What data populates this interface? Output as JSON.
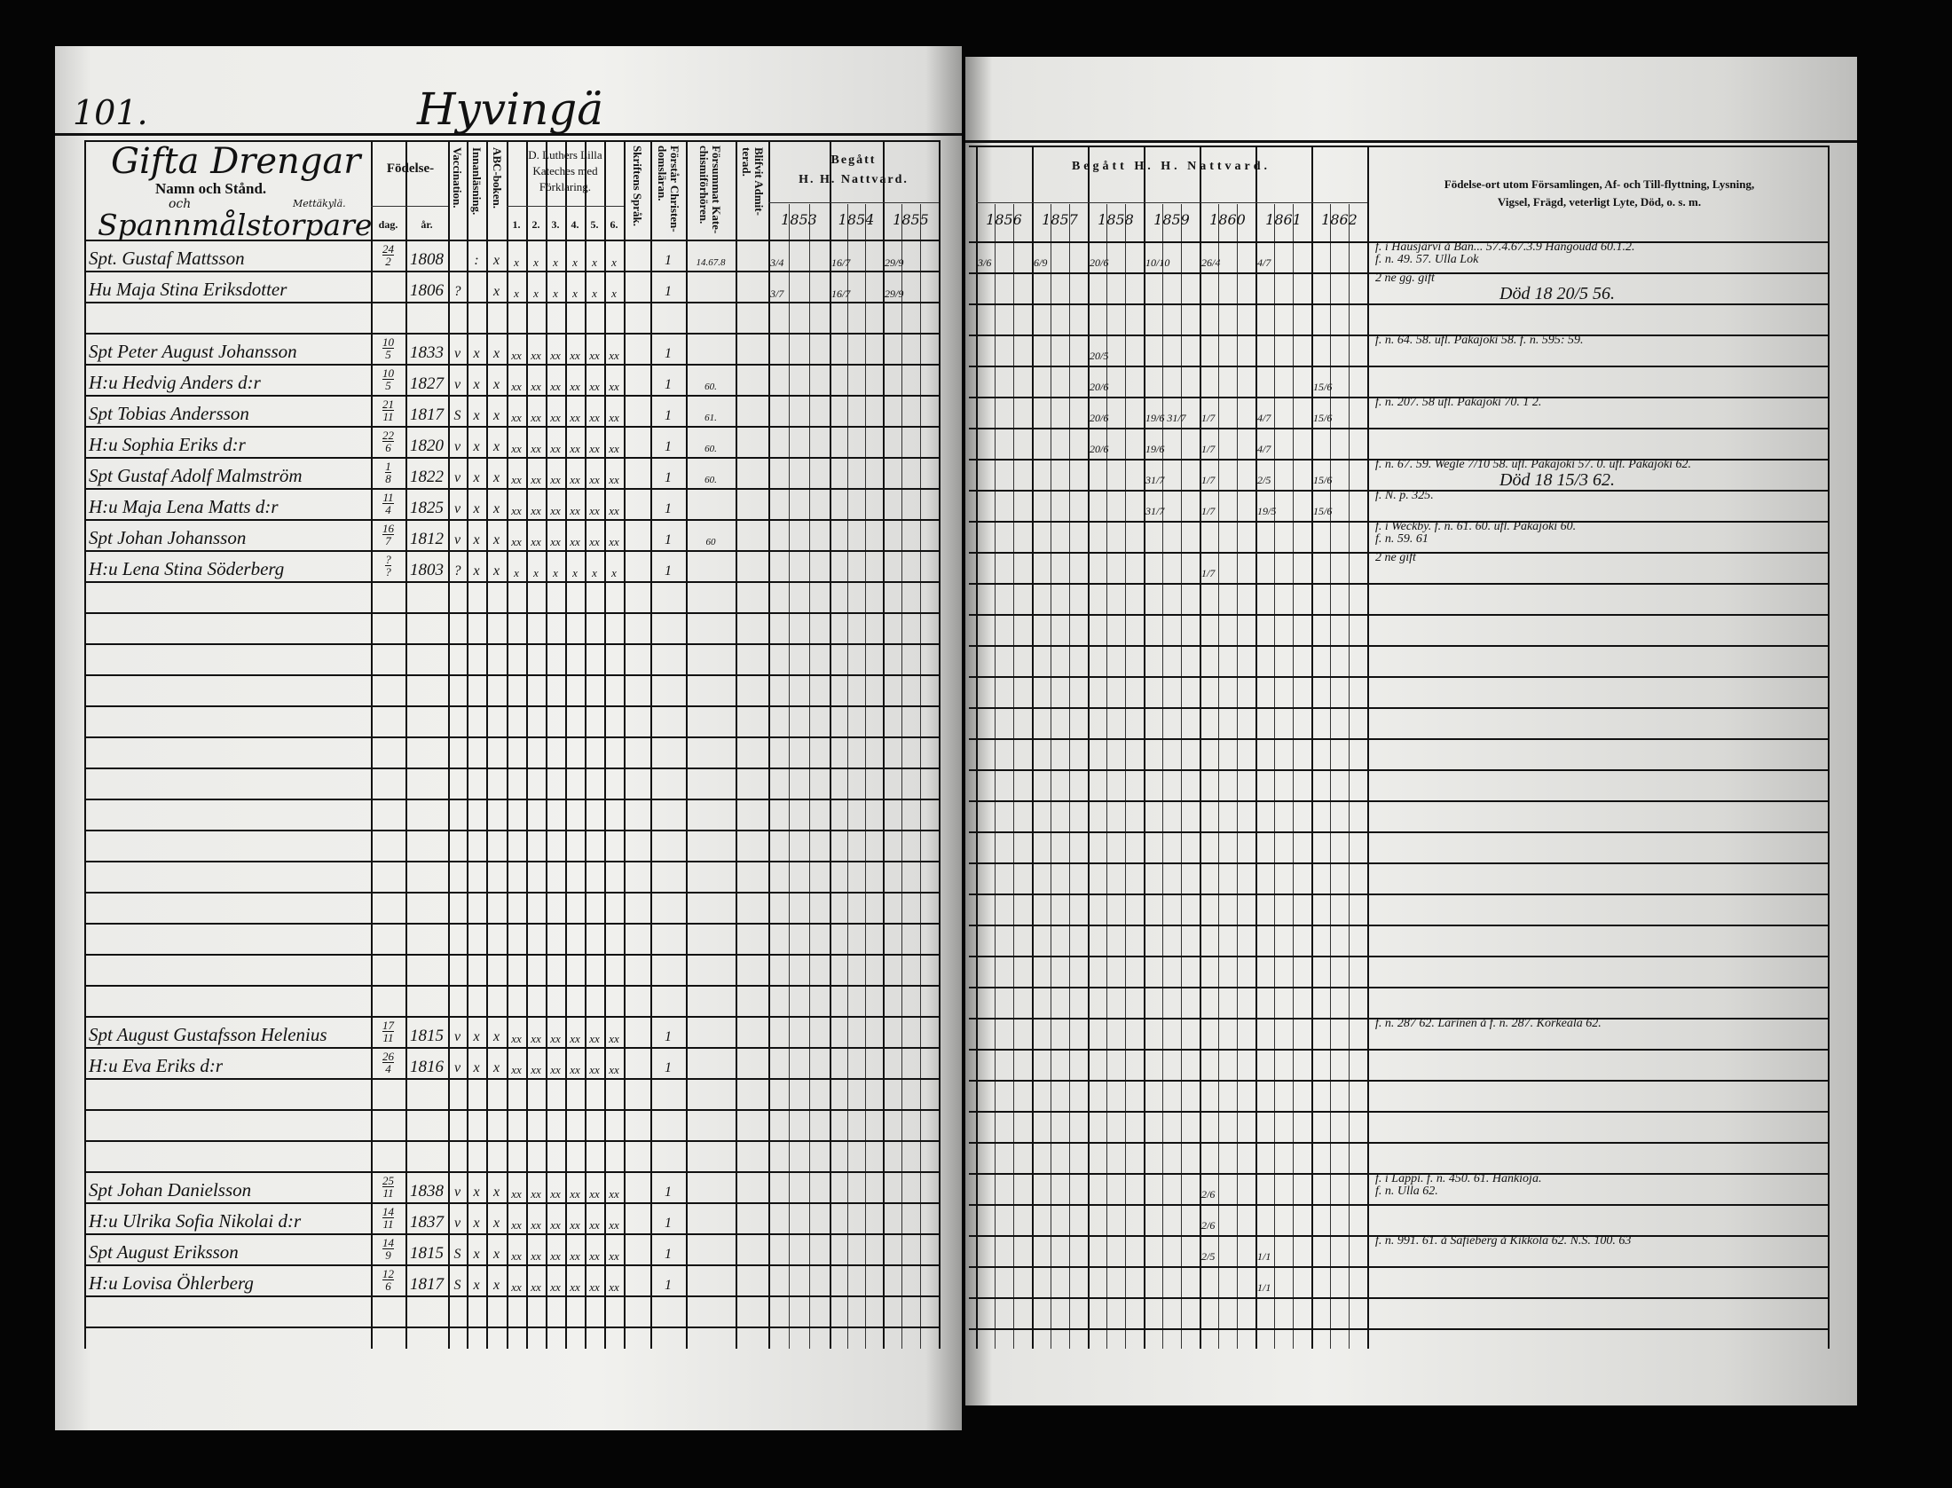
{
  "header": {
    "page_number": "101.",
    "village": "Hyvingä",
    "section_title": "Gifta Drengar",
    "name_label": "Namn och Stånd.",
    "och": "och",
    "village_note": "Mettäkylä.",
    "section_subtitle": "Spannmålstorpare"
  },
  "columns": {
    "fodelse": "Födelse-",
    "dag": "dag.",
    "ar": "år.",
    "vaccination": "Vaccination.",
    "innanlasning": "Innanläsning.",
    "abc": "ABC-boken.",
    "katekes_1": "D. Luthers Lilla",
    "katekes_2": "Kateches med",
    "katekes_3": "Förklaring.",
    "katekes_parts": [
      "1.",
      "2.",
      "3.",
      "4.",
      "5.",
      "6."
    ],
    "skriftens": "Skriftens Språk.",
    "forstar_1": "Förstår Christen-",
    "forstar_2": "domsläran.",
    "forsummat_1": "Försummat Kate-",
    "forsummat_2": "chismiförhören.",
    "blifvit_1": "Blifvit Admit-",
    "blifvit_2": "terad.",
    "begatt_left_1": "Begått",
    "begatt_left_2": "H. H. Nattvard.",
    "begatt_right": "Begått H. H. Nattvard.",
    "years": [
      "1853",
      "1854",
      "1855",
      "1856",
      "1857",
      "1858",
      "1859",
      "1860",
      "1861",
      "1862"
    ],
    "remarks_1": "Födelse-ort utom Församlingen, Af- och Till-flyttning, Lysning,",
    "remarks_2": "Vigsel, Frägd, veterligt Lyte, Död, o. s. m."
  },
  "rows": [
    {
      "name": "Spt. Gustaf Mattsson",
      "day": "24",
      "month": "2",
      "year": "1808",
      "vacc": "",
      "innan": ":",
      "abc": "x",
      "kat": [
        "x",
        "x",
        "x",
        "x",
        "x",
        "x"
      ],
      "forstar": "1",
      "forsummat": "14.67.8",
      "communion": {
        "1853": "3/4",
        "1854": "16/7",
        "1855": "29/9",
        "1856": "3/6",
        "1857": "6/9",
        "1858": "20/6",
        "1859": "10/10",
        "1860": "26/4",
        "1861": "4/7"
      },
      "remarks": [
        "f. i Hausjärvi å Ban... 57.4.67.3.9 Hangoudd 60.1.2.",
        "f. n. 49. 57. Ulla Lok"
      ]
    },
    {
      "name": "Hu Maja Stina Eriksdotter",
      "day": "",
      "month": "",
      "year": "1806",
      "vacc": "?",
      "innan": "",
      "abc": "x",
      "kat": [
        "x",
        "x",
        "x",
        "x",
        "x",
        "x"
      ],
      "forstar": "1",
      "forsummat": "",
      "communion": {
        "1853": "3/7",
        "1854": "16/7",
        "1855": "29/9"
      },
      "remarks": [
        "2 ne gg. gift",
        "Död 18 20/5 56."
      ]
    },
    null,
    {
      "name": "Spt Peter August Johansson",
      "day": "10",
      "month": "5",
      "year": "1833",
      "vacc": "v",
      "innan": "x",
      "abc": "x",
      "kat": [
        "xx",
        "xx",
        "xx",
        "xx",
        "xx",
        "xx"
      ],
      "forstar": "1",
      "forsummat": "",
      "communion": {
        "1858": "20/5"
      },
      "remarks": [
        "f. n. 64. 58. ufl. Pakajoki 58. f. n. 595: 59."
      ]
    },
    {
      "name": "H:u Hedvig Anders d:r",
      "day": "10",
      "month": "5",
      "year": "1827",
      "vacc": "v",
      "innan": "x",
      "abc": "x",
      "kat": [
        "xx",
        "xx",
        "xx",
        "xx",
        "xx",
        "xx"
      ],
      "forstar": "1",
      "forsummat": "60.",
      "communion": {
        "1858": "20/6",
        "1862": "15/6"
      },
      "remarks": []
    },
    {
      "name": "Spt Tobias Andersson",
      "day": "21",
      "month": "11",
      "year": "1817",
      "vacc": "S",
      "innan": "x",
      "abc": "x",
      "kat": [
        "xx",
        "xx",
        "xx",
        "xx",
        "xx",
        "xx"
      ],
      "forstar": "1",
      "forsummat": "61.",
      "communion": {
        "1858": "20/6",
        "1859": "19/6 31/7",
        "1860": "1/7",
        "1861": "4/7",
        "1862": "15/6"
      },
      "remarks": [
        "f. n. 207. 58 ufl. Pakajoki 70. 1 2."
      ]
    },
    {
      "name": "H:u Sophia Eriks d:r",
      "day": "22",
      "month": "6",
      "year": "1820",
      "vacc": "v",
      "innan": "x",
      "abc": "x",
      "kat": [
        "xx",
        "xx",
        "xx",
        "xx",
        "xx",
        "xx"
      ],
      "forstar": "1",
      "forsummat": "60.",
      "communion": {
        "1858": "20/6",
        "1859": "19/6",
        "1860": "1/7",
        "1861": "4/7"
      },
      "remarks": []
    },
    {
      "name": "Spt Gustaf Adolf Malmström",
      "day": "1",
      "month": "8",
      "year": "1822",
      "vacc": "v",
      "innan": "x",
      "abc": "x",
      "kat": [
        "xx",
        "xx",
        "xx",
        "xx",
        "xx",
        "xx"
      ],
      "forstar": "1",
      "forsummat": "60.",
      "communion": {
        "1859": "31/7",
        "1860": "1/7",
        "1861": "2/5",
        "1862": "15/6"
      },
      "remarks": [
        "f. n. 67. 59. Wegle 7/10 58. ufl. Pakajoki 57. 0. ufl. Pakajoki 62.",
        "Död 18 15/3 62."
      ]
    },
    {
      "name": "H:u Maja Lena Matts d:r",
      "day": "11",
      "month": "4",
      "year": "1825",
      "vacc": "v",
      "innan": "x",
      "abc": "x",
      "kat": [
        "xx",
        "xx",
        "xx",
        "xx",
        "xx",
        "xx"
      ],
      "forstar": "1",
      "forsummat": "",
      "communion": {
        "1859": "31/7",
        "1860": "1/7",
        "1861": "19/5",
        "1862": "15/6"
      },
      "remarks": [
        "f. N. p. 325."
      ]
    },
    {
      "name": "Spt Johan Johansson",
      "day": "16",
      "month": "7",
      "year": "1812",
      "vacc": "v",
      "innan": "x",
      "abc": "x",
      "kat": [
        "xx",
        "xx",
        "xx",
        "xx",
        "xx",
        "xx"
      ],
      "forstar": "1",
      "forsummat": "60",
      "communion": {},
      "remarks": [
        "f. i Weckby. f. n. 61. 60. ufl. Pakajoki 60.",
        "f. n. 59. 61"
      ]
    },
    {
      "name": "H:u Lena Stina Söderberg",
      "day": "?",
      "month": "?",
      "year": "1803",
      "vacc": "?",
      "innan": "x",
      "abc": "x",
      "kat": [
        "x",
        "x",
        "x",
        "x",
        "x",
        "x"
      ],
      "forstar": "1",
      "forsummat": "",
      "communion": {
        "1860": "1/7"
      },
      "remarks": [
        "2 ne gift"
      ]
    },
    null,
    null,
    null,
    null,
    null,
    null,
    null,
    null,
    null,
    null,
    null,
    null,
    null,
    null,
    {
      "name": "Spt August Gustafsson Helenius",
      "day": "17",
      "month": "11",
      "year": "1815",
      "vacc": "v",
      "innan": "x",
      "abc": "x",
      "kat": [
        "xx",
        "xx",
        "xx",
        "xx",
        "xx",
        "xx"
      ],
      "forstar": "1",
      "forsummat": "",
      "communion": {},
      "remarks": [
        "f. n. 287 62. Larinen å f. n. 287. Korkeala 62."
      ]
    },
    {
      "name": "H:u Eva Eriks d:r",
      "day": "26",
      "month": "4",
      "year": "1816",
      "vacc": "v",
      "innan": "x",
      "abc": "x",
      "kat": [
        "xx",
        "xx",
        "xx",
        "xx",
        "xx",
        "xx"
      ],
      "forstar": "1",
      "forsummat": "",
      "communion": {},
      "remarks": []
    },
    null,
    null,
    null,
    {
      "name": "Spt Johan Danielsson",
      "day": "25",
      "month": "11",
      "year": "1838",
      "vacc": "v",
      "innan": "x",
      "abc": "x",
      "kat": [
        "xx",
        "xx",
        "xx",
        "xx",
        "xx",
        "xx"
      ],
      "forstar": "1",
      "forsummat": "",
      "communion": {
        "1860": "2/6"
      },
      "remarks": [
        "f. i Lappi. f. n. 450. 61. Hankioja.",
        "f. n. Ulla 62."
      ]
    },
    {
      "name": "H:u Ulrika Sofia Nikolai d:r",
      "day": "14",
      "month": "11",
      "year": "1837",
      "vacc": "v",
      "innan": "x",
      "abc": "x",
      "kat": [
        "xx",
        "xx",
        "xx",
        "xx",
        "xx",
        "xx"
      ],
      "forstar": "1",
      "forsummat": "",
      "communion": {
        "1860": "2/6"
      },
      "remarks": []
    },
    {
      "name": "Spt August Eriksson",
      "day": "14",
      "month": "9",
      "year": "1815",
      "vacc": "S",
      "innan": "x",
      "abc": "x",
      "kat": [
        "xx",
        "xx",
        "xx",
        "xx",
        "xx",
        "xx"
      ],
      "forstar": "1",
      "forsummat": "",
      "communion": {
        "1860": "2/5",
        "1861": "1/1"
      },
      "remarks": [
        "f. n. 991. 61. å Safieberg å Kikkola 62. N.S. 100. 63"
      ]
    },
    {
      "name": "H:u Lovisa Öhlerberg",
      "day": "12",
      "month": "6",
      "year": "1817",
      "vacc": "S",
      "innan": "x",
      "abc": "x",
      "kat": [
        "xx",
        "xx",
        "xx",
        "xx",
        "xx",
        "xx"
      ],
      "forstar": "1",
      "forsummat": "",
      "communion": {
        "1861": "1/1"
      },
      "remarks": []
    },
    null
  ]
}
